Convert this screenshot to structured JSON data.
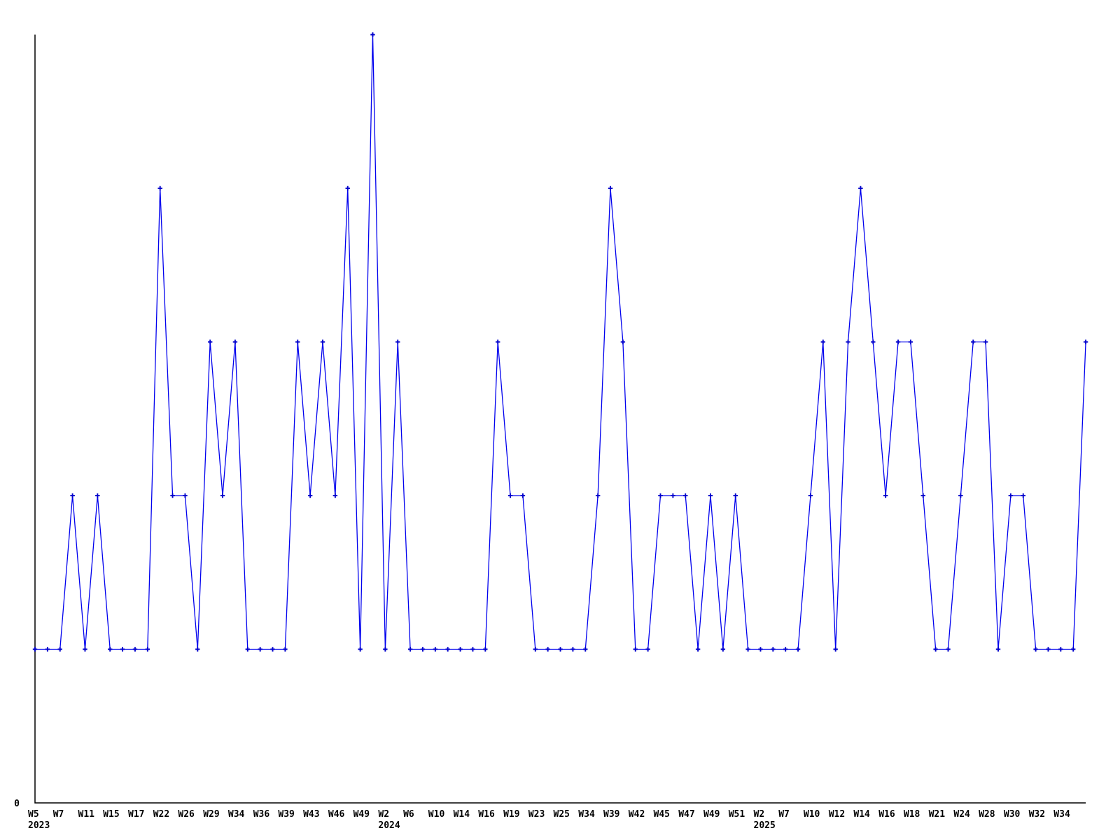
{
  "chart_data": {
    "type": "line",
    "title": "",
    "legend": null,
    "grid": false,
    "background_color": "#ffffff",
    "axis_color": "#000000",
    "line_color": "#0000ee",
    "marker_color": "#0000cc",
    "marker_shape": "plus",
    "ylim": [
      0,
      5
    ],
    "y_origin_label": "0",
    "x_axis_unit": "ISO week",
    "values": [
      1,
      1,
      1,
      2,
      1,
      2,
      1,
      1,
      1,
      1,
      4,
      2,
      2,
      1,
      3,
      2,
      3,
      1,
      1,
      1,
      1,
      3,
      2,
      3,
      2,
      4,
      1,
      5,
      1,
      3,
      1,
      1,
      1,
      1,
      1,
      1,
      1,
      3,
      2,
      2,
      1,
      1,
      1,
      1,
      1,
      2,
      4,
      3,
      1,
      1,
      2,
      2,
      2,
      1,
      2,
      1,
      2,
      1,
      1,
      1,
      1,
      1,
      2,
      3,
      1,
      3,
      4,
      3,
      2,
      3,
      3,
      2,
      1,
      1,
      2,
      3,
      3,
      1,
      2,
      2,
      1,
      1,
      1,
      1,
      3
    ],
    "tick_labels": [
      {
        "index": 0,
        "week": "W5",
        "year": "2023"
      },
      {
        "index": 2,
        "week": "W7"
      },
      {
        "index": 4,
        "week": "W11"
      },
      {
        "index": 6,
        "week": "W15"
      },
      {
        "index": 8,
        "week": "W17"
      },
      {
        "index": 10,
        "week": "W22"
      },
      {
        "index": 12,
        "week": "W26"
      },
      {
        "index": 14,
        "week": "W29"
      },
      {
        "index": 16,
        "week": "W34"
      },
      {
        "index": 18,
        "week": "W36"
      },
      {
        "index": 20,
        "week": "W39"
      },
      {
        "index": 22,
        "week": "W43"
      },
      {
        "index": 24,
        "week": "W46"
      },
      {
        "index": 26,
        "week": "W49"
      },
      {
        "index": 28,
        "week": "W2",
        "year": "2024"
      },
      {
        "index": 30,
        "week": "W6"
      },
      {
        "index": 32,
        "week": "W10"
      },
      {
        "index": 34,
        "week": "W14"
      },
      {
        "index": 36,
        "week": "W16"
      },
      {
        "index": 38,
        "week": "W19"
      },
      {
        "index": 40,
        "week": "W23"
      },
      {
        "index": 42,
        "week": "W25"
      },
      {
        "index": 44,
        "week": "W34"
      },
      {
        "index": 46,
        "week": "W39"
      },
      {
        "index": 48,
        "week": "W42"
      },
      {
        "index": 50,
        "week": "W45"
      },
      {
        "index": 52,
        "week": "W47"
      },
      {
        "index": 54,
        "week": "W49"
      },
      {
        "index": 56,
        "week": "W51"
      },
      {
        "index": 58,
        "week": "W2",
        "year": "2025"
      },
      {
        "index": 60,
        "week": "W7"
      },
      {
        "index": 62,
        "week": "W10"
      },
      {
        "index": 64,
        "week": "W12"
      },
      {
        "index": 66,
        "week": "W14"
      },
      {
        "index": 68,
        "week": "W16"
      },
      {
        "index": 70,
        "week": "W18"
      },
      {
        "index": 72,
        "week": "W21"
      },
      {
        "index": 74,
        "week": "W24"
      },
      {
        "index": 76,
        "week": "W28"
      },
      {
        "index": 78,
        "week": "W30"
      },
      {
        "index": 80,
        "week": "W32"
      },
      {
        "index": 82,
        "week": "W34"
      }
    ]
  }
}
